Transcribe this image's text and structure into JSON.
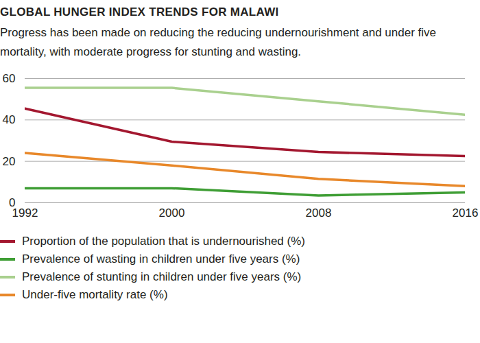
{
  "chart_data": {
    "type": "line",
    "title": "GLOBAL HUNGER INDEX TRENDS FOR MALAWI",
    "subtitle": "Progress has been made on reducing the reducing undernourishment and under five mortality, with moderate progress for stunting and wasting.",
    "x": [
      1992,
      2000,
      2008,
      2016
    ],
    "xlim": [
      1992,
      2016
    ],
    "xticks": [
      1992,
      2000,
      2008,
      2016
    ],
    "ylim": [
      0,
      60
    ],
    "yticks": [
      0,
      20,
      40,
      60
    ],
    "grid": true,
    "legend": "bottom",
    "series": [
      {
        "name": "Proportion of the population that is undernourished (%)",
        "color": "#a3172f",
        "values": [
          45.5,
          29.5,
          24.5,
          22.5
        ]
      },
      {
        "name": "Prevalence of wasting in children under five years (%)",
        "color": "#3f9e35",
        "values": [
          7,
          7,
          3.5,
          5
        ]
      },
      {
        "name": "Prevalence of stunting in children under five years (%)",
        "color": "#a9d08e",
        "values": [
          55.5,
          55.5,
          49,
          42.5
        ]
      },
      {
        "name": "Under-five mortality rate (%)",
        "color": "#e8882a",
        "values": [
          24,
          18,
          11.5,
          8
        ]
      }
    ]
  }
}
